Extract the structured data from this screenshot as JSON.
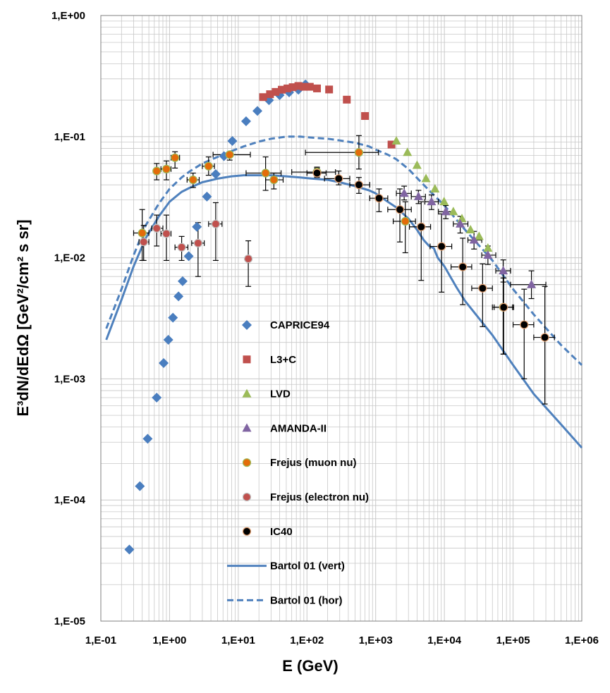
{
  "chart_data": {
    "type": "scatter",
    "title": "",
    "xlabel": "E (GeV)",
    "ylabel": "E³dN/dEdΩ [GeV²/cm² s sr]",
    "xscale": "log",
    "yscale": "log",
    "xlim": [
      0.1,
      1000000
    ],
    "ylim": [
      1e-05,
      1
    ],
    "grid": true,
    "legend_position": "center",
    "x_tick_labels": [
      "1,E-01",
      "1,E+00",
      "1,E+01",
      "1,E+02",
      "1,E+03",
      "1,E+04",
      "1,E+05",
      "1,E+06"
    ],
    "y_tick_labels": [
      "1,E-05",
      "1,E-04",
      "1,E-03",
      "1,E-02",
      "1,E-01",
      "1,E+00"
    ],
    "colors": {
      "caprice": "#4a7ebf",
      "l3c": "#c0504d",
      "lvd": "#9bbb59",
      "amanda": "#8064a2",
      "frejus_mu": "#e36c0a",
      "frejus_e": "#c0504d",
      "ic40": "#000000",
      "bartol": "#4f81bd",
      "grid": "#c8c8c8",
      "errbar": "#000000"
    },
    "series": [
      {
        "key": "caprice",
        "name": "CAPRICE94",
        "marker": "diamond",
        "points": [
          [
            0.26,
            3.9e-05
          ],
          [
            0.37,
            0.00013
          ],
          [
            0.48,
            0.00032
          ],
          [
            0.65,
            0.0007
          ],
          [
            0.82,
            0.00135
          ],
          [
            0.96,
            0.0021
          ],
          [
            1.12,
            0.0032
          ],
          [
            1.35,
            0.0048
          ],
          [
            1.55,
            0.0064
          ],
          [
            1.9,
            0.0103
          ],
          [
            2.5,
            0.018
          ],
          [
            3.5,
            0.032
          ],
          [
            4.7,
            0.049
          ],
          [
            6.2,
            0.069
          ],
          [
            8.2,
            0.092
          ],
          [
            13,
            0.134
          ],
          [
            19,
            0.163
          ],
          [
            28,
            0.2
          ],
          [
            40,
            0.22
          ],
          [
            55,
            0.232
          ],
          [
            75,
            0.244
          ],
          [
            95,
            0.27
          ]
        ]
      },
      {
        "key": "l3c",
        "name": "L3+C",
        "marker": "square",
        "points": [
          [
            23,
            0.212
          ],
          [
            29,
            0.224
          ],
          [
            35,
            0.234
          ],
          [
            43,
            0.244
          ],
          [
            52,
            0.25
          ],
          [
            62,
            0.256
          ],
          [
            75,
            0.262
          ],
          [
            90,
            0.258
          ],
          [
            110,
            0.258
          ],
          [
            140,
            0.25
          ],
          [
            210,
            0.245
          ],
          [
            380,
            0.202
          ],
          [
            700,
            0.148
          ],
          [
            1700,
            0.086
          ]
        ]
      },
      {
        "key": "lvd",
        "name": "LVD",
        "marker": "triangle",
        "points": [
          [
            2000,
            0.092
          ],
          [
            2900,
            0.074
          ],
          [
            4000,
            0.058
          ],
          [
            5400,
            0.045
          ],
          [
            7300,
            0.037
          ],
          [
            9900,
            0.029
          ],
          [
            13500,
            0.024
          ],
          [
            18000,
            0.021
          ],
          [
            24000,
            0.017
          ],
          [
            32000,
            0.015
          ],
          [
            43000,
            0.012
          ]
        ]
      },
      {
        "key": "amanda",
        "name": "AMANDA-II",
        "marker": "triangle",
        "points": [
          [
            2600,
            0.034,
            2000,
            3300,
            0.03,
            0.039
          ],
          [
            4200,
            0.032,
            3300,
            5300,
            0.028,
            0.036
          ],
          [
            6500,
            0.029,
            5200,
            8200,
            0.025,
            0.033
          ],
          [
            10500,
            0.024,
            8200,
            13500,
            0.021,
            0.027
          ],
          [
            17000,
            0.019,
            13500,
            22000,
            0.016,
            0.022
          ],
          [
            27000,
            0.014,
            22000,
            35000,
            0.0118,
            0.0165
          ],
          [
            43000,
            0.0105,
            35000,
            56000,
            0.0088,
            0.0125
          ],
          [
            72000,
            0.0078,
            56000,
            92000,
            0.0063,
            0.0096
          ],
          [
            185000,
            0.006,
            92000,
            300000,
            0.0046,
            0.0078
          ]
        ]
      },
      {
        "key": "frejus_mu",
        "name": "Frejus (muon nu)",
        "marker": "circle",
        "points": [
          [
            0.4,
            0.016,
            0.3,
            0.5,
            0.0095,
            0.025
          ],
          [
            0.65,
            0.052,
            0.6,
            0.72,
            0.044,
            0.06
          ],
          [
            0.9,
            0.054,
            0.75,
            1.05,
            0.044,
            0.063
          ],
          [
            1.2,
            0.067,
            1.05,
            1.4,
            0.055,
            0.075
          ],
          [
            2.2,
            0.044,
            1.8,
            2.7,
            0.038,
            0.05
          ],
          [
            3.7,
            0.057,
            3,
            4.5,
            0.048,
            0.068
          ],
          [
            7.5,
            0.071,
            4.3,
            15,
            0.064,
            0.075
          ],
          [
            25,
            0.05,
            13,
            42,
            0.036,
            0.068
          ],
          [
            33,
            0.044,
            25,
            45,
            0.037,
            0.05
          ],
          [
            140,
            0.051,
            60,
            260,
            0.047,
            0.055
          ],
          [
            570,
            0.074,
            95,
            1100,
            0.054,
            0.102
          ],
          [
            2700,
            0.02,
            1800,
            3800,
            0.011,
            0.029
          ],
          [
            72000,
            0.0039,
            53000,
            98000,
            0.0016,
            0.0068
          ]
        ]
      },
      {
        "key": "frejus_e",
        "name": "Frejus (electron nu)",
        "marker": "circle",
        "points": [
          [
            0.42,
            0.0135,
            0.36,
            0.5,
            0.0095,
            0.0185
          ],
          [
            0.65,
            0.0175,
            0.55,
            0.8,
            0.0125,
            0.0225
          ],
          [
            0.9,
            0.0158,
            0.75,
            1.05,
            0.0095,
            0.0225
          ],
          [
            1.5,
            0.0122,
            1.2,
            1.85,
            0.0095,
            0.015
          ],
          [
            2.6,
            0.0132,
            2.1,
            3.2,
            0.007,
            0.0195
          ],
          [
            4.7,
            0.019,
            3.7,
            5.8,
            0.0095,
            0.0285
          ],
          [
            14,
            0.0098,
            14,
            14,
            0.0058,
            0.0138
          ]
        ]
      },
      {
        "key": "ic40",
        "name": "IC40",
        "marker": "circle",
        "points": [
          [
            140,
            0.05,
            100,
            190,
            0.046,
            0.056
          ],
          [
            290,
            0.045,
            180,
            420,
            0.04,
            0.052
          ],
          [
            570,
            0.04,
            420,
            820,
            0.034,
            0.046
          ],
          [
            1120,
            0.031,
            820,
            1500,
            0.024,
            0.037
          ],
          [
            2250,
            0.025,
            1500,
            3300,
            0.0135,
            0.037
          ],
          [
            4600,
            0.018,
            3100,
            6300,
            0.0065,
            0.029
          ],
          [
            9100,
            0.0124,
            6200,
            12800,
            0.0052,
            0.023
          ],
          [
            18500,
            0.0084,
            12500,
            25000,
            0.0041,
            0.0145
          ],
          [
            36000,
            0.0056,
            25000,
            50000,
            0.0027,
            0.0089
          ],
          [
            73000,
            0.0039,
            50000,
            102000,
            0.0016,
            0.0068
          ],
          [
            145000,
            0.0028,
            100000,
            200000,
            0.001,
            0.0055
          ],
          [
            290000,
            0.0022,
            200000,
            400000,
            0.00062,
            0.0058
          ]
        ]
      }
    ],
    "lines": [
      {
        "key": "bartol_vert",
        "name": "Bartol 01 (vert)",
        "style": "solid",
        "points": [
          [
            0.12,
            0.0021
          ],
          [
            0.2,
            0.0045
          ],
          [
            0.3,
            0.0085
          ],
          [
            0.45,
            0.0145
          ],
          [
            0.7,
            0.022
          ],
          [
            1,
            0.029
          ],
          [
            1.5,
            0.035
          ],
          [
            2,
            0.038
          ],
          [
            3,
            0.042
          ],
          [
            5,
            0.045
          ],
          [
            8,
            0.047
          ],
          [
            12,
            0.048
          ],
          [
            20,
            0.048
          ],
          [
            30,
            0.048
          ],
          [
            50,
            0.047
          ],
          [
            80,
            0.046
          ],
          [
            120,
            0.045
          ],
          [
            200,
            0.044
          ],
          [
            300,
            0.042
          ],
          [
            500,
            0.039
          ],
          [
            800,
            0.036
          ],
          [
            1000,
            0.034
          ],
          [
            1500,
            0.029
          ],
          [
            2000,
            0.026
          ],
          [
            3000,
            0.021
          ],
          [
            4000,
            0.017
          ],
          [
            5000,
            0.014
          ],
          [
            6000,
            0.0125
          ],
          [
            7000,
            0.012
          ],
          [
            8000,
            0.01
          ],
          [
            10000,
            0.0085
          ],
          [
            15000,
            0.0057
          ],
          [
            20000,
            0.0044
          ],
          [
            30000,
            0.0033
          ],
          [
            50000,
            0.0023
          ],
          [
            100000,
            0.0013
          ],
          [
            200000,
            0.00075
          ],
          [
            500000,
            0.00042
          ],
          [
            1000000,
            0.00027
          ]
        ]
      },
      {
        "key": "bartol_hor",
        "name": "Bartol 01 (hor)",
        "style": "dashed",
        "points": [
          [
            0.12,
            0.0026
          ],
          [
            0.2,
            0.0055
          ],
          [
            0.3,
            0.0105
          ],
          [
            0.45,
            0.0185
          ],
          [
            0.7,
            0.028
          ],
          [
            1,
            0.037
          ],
          [
            1.5,
            0.046
          ],
          [
            2,
            0.052
          ],
          [
            3,
            0.06
          ],
          [
            5,
            0.068
          ],
          [
            8,
            0.076
          ],
          [
            12,
            0.083
          ],
          [
            20,
            0.091
          ],
          [
            30,
            0.096
          ],
          [
            50,
            0.1
          ],
          [
            80,
            0.1
          ],
          [
            120,
            0.098
          ],
          [
            200,
            0.096
          ],
          [
            300,
            0.093
          ],
          [
            500,
            0.089
          ],
          [
            800,
            0.083
          ],
          [
            1000,
            0.078
          ],
          [
            1500,
            0.071
          ],
          [
            2000,
            0.065
          ],
          [
            3000,
            0.054
          ],
          [
            5000,
            0.04
          ],
          [
            10000,
            0.027
          ],
          [
            20000,
            0.017
          ],
          [
            50000,
            0.0095
          ],
          [
            100000,
            0.0055
          ],
          [
            200000,
            0.0034
          ],
          [
            500000,
            0.0019
          ],
          [
            1000000,
            0.0013
          ]
        ]
      }
    ],
    "legend": [
      {
        "key": "caprice",
        "label": "CAPRICE94",
        "kind": "diamond"
      },
      {
        "key": "l3c",
        "label": "L3+C",
        "kind": "square"
      },
      {
        "key": "lvd",
        "label": "LVD",
        "kind": "triangle"
      },
      {
        "key": "amanda",
        "label": "AMANDA-II",
        "kind": "triangle"
      },
      {
        "key": "frejus_mu",
        "label": "Frejus (muon nu)",
        "kind": "circle"
      },
      {
        "key": "frejus_e",
        "label": "Frejus (electron nu)",
        "kind": "circle"
      },
      {
        "key": "ic40",
        "label": "IC40",
        "kind": "circle"
      },
      {
        "key": "bartol_vert",
        "label": "Bartol 01 (vert)",
        "kind": "solid"
      },
      {
        "key": "bartol_hor",
        "label": "Bartol 01 (hor)",
        "kind": "dashed"
      }
    ]
  }
}
